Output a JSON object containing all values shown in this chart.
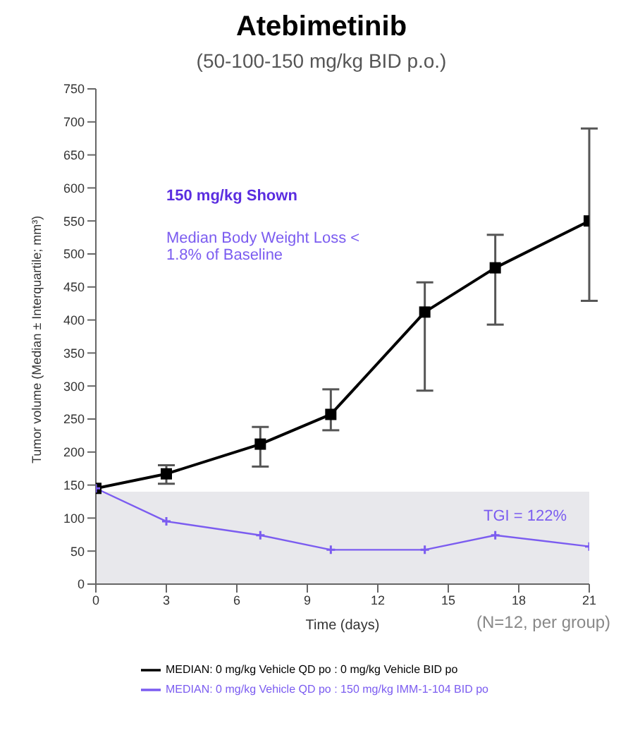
{
  "chart_data": {
    "type": "line",
    "title": "Atebimetinib",
    "subtitle": "(50-100-150 mg/kg BID p.o.)",
    "xlabel": "Time (days)",
    "ylabel": "Tumor volume (Median ± Interquartile; mm³)",
    "x": [
      0,
      3,
      7,
      10,
      14,
      17,
      21
    ],
    "series": [
      {
        "name": "MEDIAN: 0 mg/kg Vehicle QD po : 0 mg/kg Vehicle BID po",
        "color": "#000000",
        "marker": "square",
        "values": [
          145,
          167,
          212,
          257,
          412,
          479,
          550
        ],
        "errors": [
          null,
          [
            152,
            180
          ],
          [
            178,
            238
          ],
          [
            233,
            295
          ],
          [
            293,
            457
          ],
          [
            393,
            529
          ],
          [
            429,
            690
          ]
        ]
      },
      {
        "name": "MEDIAN: 0 mg/kg Vehicle QD po : 150 mg/kg IMM-1-104 BID po",
        "color": "#7b5cf0",
        "marker": "cross",
        "values": [
          145,
          95,
          74,
          52,
          52,
          74,
          57
        ]
      }
    ],
    "xlim": [
      0,
      21
    ],
    "xticks": [
      0,
      3,
      6,
      9,
      12,
      15,
      18,
      21
    ],
    "ylim": [
      0,
      750
    ],
    "yticks": [
      0,
      50,
      100,
      150,
      200,
      250,
      300,
      350,
      400,
      450,
      500,
      550,
      600,
      650,
      700,
      750
    ],
    "bands": [
      {
        "axis": "y",
        "from": 0,
        "to": 140,
        "color": "#e8e8ec"
      }
    ],
    "legend": "bottom",
    "grid": false,
    "annotations": [
      "150 mg/kg Shown",
      "Median Body Weight Loss < 1.8% of Baseline",
      "TGI = 122%",
      "(N=12, per group)"
    ]
  }
}
